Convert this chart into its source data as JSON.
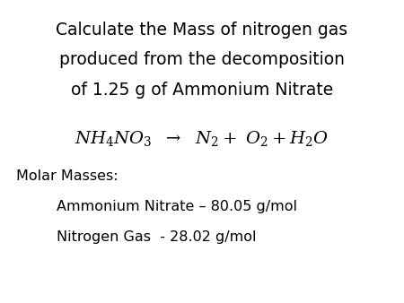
{
  "title_line1": "Calculate the Mass of nitrogen gas",
  "title_line2": "produced from the decomposition",
  "title_line3": "of 1.25 g of Ammonium Nitrate",
  "molar_masses_label": "Molar Masses:",
  "ammonium_nitrate": "Ammonium Nitrate – 80.05 g/mol",
  "nitrogen_gas": "Nitrogen Gas  - 28.02 g/mol",
  "bg_color": "#ffffff",
  "text_color": "#000000",
  "title_fontsize": 13.5,
  "eq_fontsize": 14,
  "body_fontsize": 11.5
}
